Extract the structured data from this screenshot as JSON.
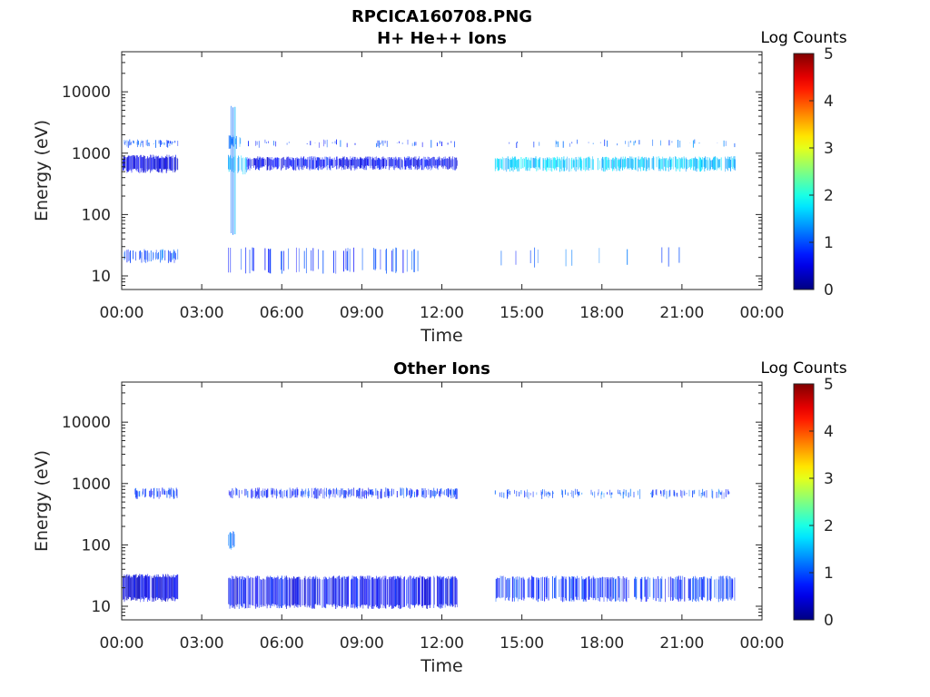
{
  "chart_data": [
    {
      "type": "heatmap",
      "title": "RPCICA160708.PNG",
      "subtitle": "H+ He++ Ions",
      "xlabel": "Time",
      "ylabel": "Energy (eV)",
      "xtick_labels": [
        "00:00",
        "03:00",
        "06:00",
        "09:00",
        "12:00",
        "15:00",
        "18:00",
        "21:00",
        "00:00"
      ],
      "xlim_hours": [
        0,
        24
      ],
      "ytick_labels": [
        "10",
        "100",
        "1000",
        "10000"
      ],
      "ytick_values": [
        10,
        100,
        1000,
        10000
      ],
      "ylim": [
        6,
        45000
      ],
      "yscale": "log",
      "colorbar": {
        "label": "Log Counts",
        "ticks": [
          "0",
          "1",
          "2",
          "3",
          "4",
          "5"
        ],
        "range": [
          0,
          5
        ],
        "colormap": "jet"
      },
      "bands": [
        {
          "t_start": 0.05,
          "t_end": 2.1,
          "e_low": 520,
          "e_high": 900,
          "log_counts": 0.5,
          "density": 0.95
        },
        {
          "t_start": 0.05,
          "t_end": 2.1,
          "e_low": 1350,
          "e_high": 1600,
          "log_counts": 1.0,
          "density": 0.5
        },
        {
          "t_start": 0.05,
          "t_end": 2.1,
          "e_low": 18,
          "e_high": 26,
          "log_counts": 1.0,
          "density": 0.5
        },
        {
          "t_start": 4.0,
          "t_end": 4.7,
          "e_low": 500,
          "e_high": 900,
          "log_counts": 1.5,
          "density": 0.6
        },
        {
          "t_start": 4.0,
          "t_end": 4.5,
          "e_low": 1300,
          "e_high": 1900,
          "log_counts": 1.2,
          "density": 0.4
        },
        {
          "t_start": 4.1,
          "t_end": 4.3,
          "e_low": 50,
          "e_high": 6000,
          "log_counts": 1.3,
          "density": 0.3
        },
        {
          "t_start": 4.7,
          "t_end": 12.6,
          "e_low": 580,
          "e_high": 850,
          "log_counts": 0.6,
          "density": 0.9
        },
        {
          "t_start": 4.7,
          "t_end": 12.6,
          "e_low": 1350,
          "e_high": 1600,
          "log_counts": 0.9,
          "density": 0.12
        },
        {
          "t_start": 4.0,
          "t_end": 11.5,
          "e_low": 12,
          "e_high": 28,
          "log_counts": 0.9,
          "density": 0.15
        },
        {
          "t_start": 14.0,
          "t_end": 23.0,
          "e_low": 550,
          "e_high": 850,
          "log_counts": 1.6,
          "density": 0.75
        },
        {
          "t_start": 14.2,
          "t_end": 23.0,
          "e_low": 1350,
          "e_high": 1600,
          "log_counts": 1.1,
          "density": 0.1
        },
        {
          "t_start": 14.0,
          "t_end": 23.0,
          "e_low": 15,
          "e_high": 28,
          "log_counts": 1.0,
          "density": 0.04
        }
      ]
    },
    {
      "type": "heatmap",
      "title": "Other Ions",
      "xlabel": "Time",
      "ylabel": "Energy (eV)",
      "xtick_labels": [
        "00:00",
        "03:00",
        "06:00",
        "09:00",
        "12:00",
        "15:00",
        "18:00",
        "21:00",
        "00:00"
      ],
      "xlim_hours": [
        0,
        24
      ],
      "ytick_labels": [
        "10",
        "100",
        "1000",
        "10000"
      ],
      "ytick_values": [
        10,
        100,
        1000,
        10000
      ],
      "ylim": [
        6,
        45000
      ],
      "yscale": "log",
      "colorbar": {
        "label": "Log Counts",
        "ticks": [
          "0",
          "1",
          "2",
          "3",
          "4",
          "5"
        ],
        "range": [
          0,
          5
        ],
        "colormap": "jet"
      },
      "bands": [
        {
          "t_start": 0.5,
          "t_end": 2.1,
          "e_low": 620,
          "e_high": 820,
          "log_counts": 0.9,
          "density": 0.5
        },
        {
          "t_start": 0.05,
          "t_end": 2.1,
          "e_low": 13,
          "e_high": 32,
          "log_counts": 0.5,
          "density": 0.95
        },
        {
          "t_start": 4.0,
          "t_end": 12.6,
          "e_low": 620,
          "e_high": 820,
          "log_counts": 0.8,
          "density": 0.55
        },
        {
          "t_start": 4.0,
          "t_end": 4.3,
          "e_low": 90,
          "e_high": 160,
          "log_counts": 1.0,
          "density": 0.4
        },
        {
          "t_start": 4.0,
          "t_end": 12.6,
          "e_low": 10,
          "e_high": 30,
          "log_counts": 0.6,
          "density": 0.8
        },
        {
          "t_start": 14.0,
          "t_end": 23.0,
          "e_low": 620,
          "e_high": 780,
          "log_counts": 1.0,
          "density": 0.3
        },
        {
          "t_start": 14.0,
          "t_end": 23.0,
          "e_low": 13,
          "e_high": 30,
          "log_counts": 0.8,
          "density": 0.55
        }
      ]
    }
  ]
}
